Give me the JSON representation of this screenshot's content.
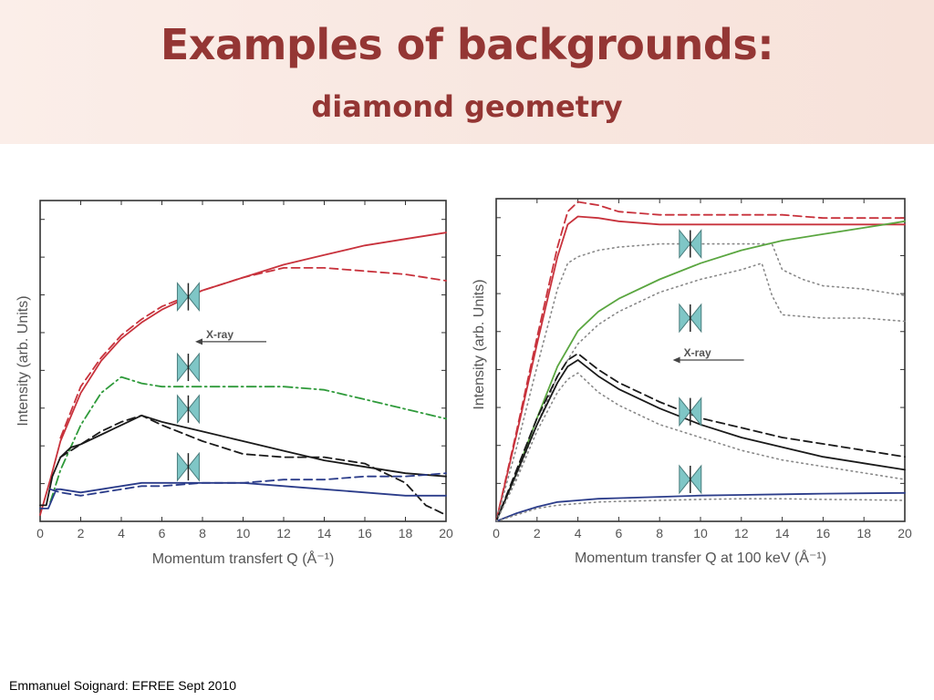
{
  "slide": {
    "title": "Examples of backgrounds:",
    "subtitle": "diamond geometry",
    "footer": "Emmanuel Soignard: EFREE Sept 2010"
  },
  "colors": {
    "title": "#943634",
    "red": "#c8323c",
    "green": "#2e9a3a",
    "green_solid": "#5aa640",
    "black": "#1a1a1a",
    "blue": "#2b3c8a",
    "gray": "#888888",
    "icon": "#7fc6c6"
  },
  "chart_data": [
    {
      "type": "line",
      "xlabel": "Momentum transfert Q (Å⁻¹)",
      "ylabel": "Intensity (arb. Units)",
      "xlim": [
        0,
        20
      ],
      "ylim": [
        0,
        10
      ],
      "xticks": [
        "0",
        "2",
        "4",
        "6",
        "8",
        "10",
        "12",
        "14",
        "16",
        "18",
        "20"
      ],
      "annotations": [
        {
          "text": "X-ray",
          "x": 8,
          "y": 5.6
        }
      ],
      "icons": [
        {
          "name": "diamond-cell-icon",
          "x": 7.3,
          "y": 7.0
        },
        {
          "name": "diamond-cell-icon",
          "x": 7.3,
          "y": 4.8
        },
        {
          "name": "diamond-cell-icon",
          "x": 7.3,
          "y": 3.5
        },
        {
          "name": "diamond-cell-icon",
          "x": 7.3,
          "y": 1.7
        }
      ],
      "series": [
        {
          "color": "red",
          "style": "solid",
          "x": [
            0,
            0.5,
            1,
            2,
            3,
            4,
            5,
            6,
            8,
            10,
            12,
            14,
            16,
            18,
            20
          ],
          "y": [
            0.2,
            1.3,
            2.5,
            4.0,
            5.0,
            5.7,
            6.2,
            6.6,
            7.2,
            7.6,
            8.0,
            8.3,
            8.6,
            8.8,
            9.0
          ]
        },
        {
          "color": "red",
          "style": "dashed",
          "x": [
            1,
            2,
            3,
            4,
            5,
            6,
            8,
            10,
            12,
            14,
            16,
            18,
            20
          ],
          "y": [
            2.6,
            4.2,
            5.1,
            5.8,
            6.3,
            6.7,
            7.2,
            7.6,
            7.9,
            7.9,
            7.8,
            7.7,
            7.5
          ]
        },
        {
          "color": "green",
          "style": "dashdot",
          "x": [
            0.5,
            1,
            2,
            3,
            4,
            5,
            6,
            8,
            10,
            12,
            14,
            16,
            18,
            20
          ],
          "y": [
            0.6,
            1.6,
            3.0,
            4.0,
            4.5,
            4.3,
            4.2,
            4.2,
            4.2,
            4.2,
            4.1,
            3.8,
            3.5,
            3.2
          ]
        },
        {
          "color": "black",
          "style": "solid",
          "x": [
            0,
            0.3,
            0.6,
            1,
            1.5,
            2,
            3,
            4,
            5,
            6,
            8,
            10,
            12,
            14,
            16,
            18,
            20
          ],
          "y": [
            0.5,
            0.5,
            1.4,
            2.0,
            2.3,
            2.4,
            2.7,
            3.0,
            3.3,
            3.1,
            2.8,
            2.5,
            2.2,
            1.9,
            1.7,
            1.5,
            1.4
          ]
        },
        {
          "color": "black",
          "style": "dashed",
          "x": [
            1,
            2,
            3,
            4,
            5,
            6,
            8,
            10,
            12,
            14,
            16,
            18,
            19,
            20
          ],
          "y": [
            2.0,
            2.4,
            2.8,
            3.1,
            3.3,
            3.0,
            2.5,
            2.1,
            2.0,
            2.0,
            1.8,
            1.2,
            0.5,
            0.2
          ]
        },
        {
          "color": "blue",
          "style": "solid",
          "x": [
            0,
            0.4,
            0.8,
            1,
            2,
            3,
            4,
            5,
            6,
            8,
            10,
            12,
            14,
            16,
            18,
            20
          ],
          "y": [
            0.4,
            0.4,
            1.0,
            1.0,
            0.9,
            1.0,
            1.1,
            1.2,
            1.2,
            1.2,
            1.2,
            1.1,
            1.0,
            0.9,
            0.8,
            0.8
          ]
        },
        {
          "color": "blue",
          "style": "dashed",
          "x": [
            0.5,
            1,
            2,
            3,
            4,
            5,
            6,
            8,
            10,
            12,
            14,
            16,
            18,
            20
          ],
          "y": [
            1.0,
            0.9,
            0.8,
            0.9,
            1.0,
            1.1,
            1.1,
            1.2,
            1.2,
            1.3,
            1.3,
            1.4,
            1.4,
            1.5
          ]
        }
      ]
    },
    {
      "type": "line",
      "xlabel": "Momentum transfer Q at 100 keV (Å⁻¹)",
      "ylabel": "Intensity (arb. Units)",
      "xlim": [
        0,
        20
      ],
      "ylim": [
        0,
        10
      ],
      "xticks": [
        "0",
        "2",
        "4",
        "6",
        "8",
        "10",
        "12",
        "14",
        "16",
        "18",
        "20"
      ],
      "annotations": [
        {
          "text": "X-ray",
          "x": 9,
          "y": 5.0
        }
      ],
      "icons": [
        {
          "name": "diamond-cell-icon",
          "x": 9.5,
          "y": 8.6
        },
        {
          "name": "diamond-cell-icon",
          "x": 9.5,
          "y": 6.3
        },
        {
          "name": "diamond-cell-icon",
          "x": 9.5,
          "y": 3.4
        },
        {
          "name": "diamond-cell-icon",
          "x": 9.5,
          "y": 1.3
        }
      ],
      "series": [
        {
          "color": "red",
          "style": "solid",
          "x": [
            0,
            1,
            2,
            3,
            3.5,
            4,
            5,
            6,
            8,
            10,
            12,
            14,
            16,
            18,
            20
          ],
          "y": [
            0,
            2.7,
            5.5,
            8.2,
            9.2,
            9.45,
            9.4,
            9.3,
            9.2,
            9.2,
            9.2,
            9.2,
            9.2,
            9.2,
            9.2
          ]
        },
        {
          "color": "red",
          "style": "dashed",
          "x": [
            0,
            1,
            2,
            3,
            3.5,
            4,
            5,
            6,
            8,
            10,
            12,
            14,
            16,
            18,
            20
          ],
          "y": [
            0,
            2.8,
            5.7,
            8.5,
            9.6,
            9.9,
            9.8,
            9.6,
            9.5,
            9.5,
            9.5,
            9.5,
            9.4,
            9.4,
            9.4
          ]
        },
        {
          "color": "gray",
          "style": "dotted",
          "x": [
            0,
            1,
            2,
            3,
            3.5,
            4,
            5,
            6,
            8,
            10,
            12,
            13.5,
            14,
            15,
            16,
            18,
            20
          ],
          "y": [
            0,
            2.3,
            4.8,
            7.2,
            8.0,
            8.2,
            8.4,
            8.5,
            8.6,
            8.6,
            8.6,
            8.6,
            7.8,
            7.5,
            7.3,
            7.2,
            7.0
          ]
        },
        {
          "color": "green_solid",
          "style": "solid",
          "x": [
            0,
            1,
            2,
            3,
            4,
            5,
            6,
            8,
            10,
            12,
            14,
            16,
            18,
            20
          ],
          "y": [
            0,
            1.5,
            3.2,
            4.8,
            5.9,
            6.5,
            6.9,
            7.5,
            8.0,
            8.4,
            8.7,
            8.9,
            9.1,
            9.3
          ]
        },
        {
          "color": "gray",
          "style": "dotted",
          "x": [
            0,
            1,
            2,
            3,
            4,
            5,
            6,
            8,
            10,
            12,
            13,
            13.5,
            14,
            16,
            18,
            20
          ],
          "y": [
            0,
            1.4,
            3.0,
            4.5,
            5.5,
            6.1,
            6.5,
            7.1,
            7.5,
            7.8,
            8.0,
            7.0,
            6.4,
            6.3,
            6.3,
            6.2
          ]
        },
        {
          "color": "black",
          "style": "dashed",
          "x": [
            0,
            1,
            2,
            3,
            3.5,
            4,
            5,
            6,
            8,
            10,
            12,
            14,
            16,
            18,
            20
          ],
          "y": [
            0,
            1.6,
            3.2,
            4.5,
            5.0,
            5.2,
            4.7,
            4.3,
            3.7,
            3.2,
            2.9,
            2.6,
            2.4,
            2.2,
            2.0
          ]
        },
        {
          "color": "black",
          "style": "solid",
          "x": [
            0,
            1,
            2,
            3,
            3.5,
            4,
            5,
            6,
            8,
            10,
            12,
            14,
            16,
            18,
            20
          ],
          "y": [
            0,
            1.5,
            3.0,
            4.3,
            4.8,
            5.0,
            4.5,
            4.1,
            3.5,
            3.0,
            2.6,
            2.3,
            2.0,
            1.8,
            1.6
          ]
        },
        {
          "color": "gray",
          "style": "dotted",
          "x": [
            0,
            1,
            2,
            3,
            3.5,
            4,
            5,
            6,
            8,
            10,
            12,
            14,
            16,
            18,
            20
          ],
          "y": [
            0,
            1.3,
            2.8,
            4.0,
            4.4,
            4.6,
            4.0,
            3.6,
            3.0,
            2.6,
            2.2,
            1.9,
            1.7,
            1.5,
            1.3
          ]
        },
        {
          "color": "blue",
          "style": "solid",
          "x": [
            0,
            1,
            2,
            3,
            4,
            5,
            6,
            8,
            10,
            12,
            14,
            16,
            18,
            20
          ],
          "y": [
            0,
            0.25,
            0.45,
            0.6,
            0.65,
            0.7,
            0.72,
            0.76,
            0.8,
            0.82,
            0.84,
            0.86,
            0.87,
            0.88
          ]
        },
        {
          "color": "gray",
          "style": "dotted",
          "x": [
            0,
            1,
            2,
            3,
            4,
            5,
            6,
            8,
            10,
            12,
            14,
            16,
            18,
            20
          ],
          "y": [
            0,
            0.2,
            0.4,
            0.5,
            0.55,
            0.6,
            0.62,
            0.65,
            0.68,
            0.7,
            0.7,
            0.68,
            0.67,
            0.65
          ]
        }
      ]
    }
  ]
}
